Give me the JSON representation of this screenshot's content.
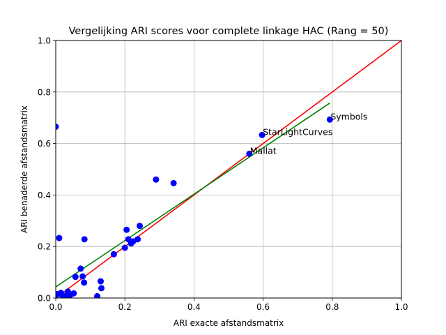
{
  "chart_data": {
    "type": "scatter",
    "title": "Vergelijking ARI scores voor complete linkage HAC (Rang = 50)",
    "xlabel": "ARI exacte afstandsmatrix",
    "ylabel": "ARI benaderde afstandsmatrix",
    "xlim": [
      0.0,
      1.0
    ],
    "ylim": [
      0.0,
      1.0
    ],
    "xticks": [
      "0.0",
      "0.2",
      "0.4",
      "0.6",
      "0.8",
      "1.0"
    ],
    "yticks": [
      "0.0",
      "0.2",
      "0.4",
      "0.6",
      "0.8",
      "1.0"
    ],
    "grid": true,
    "point_color": "#0000ff",
    "points": [
      [
        0.0,
        0.665
      ],
      [
        0.01,
        0.233
      ],
      [
        0.083,
        0.228
      ],
      [
        0.072,
        0.114
      ],
      [
        0.057,
        0.082
      ],
      [
        0.078,
        0.084
      ],
      [
        0.082,
        0.06
      ],
      [
        0.0,
        0.01
      ],
      [
        0.005,
        0.015
      ],
      [
        0.015,
        0.02
      ],
      [
        0.02,
        0.005
      ],
      [
        0.03,
        0.01
      ],
      [
        0.035,
        0.025
      ],
      [
        0.042,
        0.012
      ],
      [
        0.052,
        0.018
      ],
      [
        0.12,
        0.007
      ],
      [
        0.13,
        0.065
      ],
      [
        0.132,
        0.038
      ],
      [
        0.168,
        0.17
      ],
      [
        0.2,
        0.195
      ],
      [
        0.205,
        0.265
      ],
      [
        0.21,
        0.228
      ],
      [
        0.218,
        0.212
      ],
      [
        0.224,
        0.22
      ],
      [
        0.237,
        0.228
      ],
      [
        0.243,
        0.28
      ],
      [
        0.29,
        0.46
      ],
      [
        0.341,
        0.446
      ],
      [
        0.56,
        0.56
      ],
      [
        0.597,
        0.633
      ],
      [
        0.793,
        0.693
      ]
    ],
    "annotations": [
      {
        "text": "Symbols",
        "x": 0.793,
        "y": 0.693
      },
      {
        "text": "StarLightCurves",
        "x": 0.597,
        "y": 0.633
      },
      {
        "text": "Mallat",
        "x": 0.56,
        "y": 0.56
      }
    ],
    "lines": [
      {
        "color": "#ff0000",
        "x": [
          0.0,
          1.0
        ],
        "y": [
          0.0,
          1.0
        ]
      },
      {
        "color": "#008000",
        "x": [
          0.0,
          0.793
        ],
        "y": [
          0.043,
          0.757
        ]
      }
    ]
  }
}
